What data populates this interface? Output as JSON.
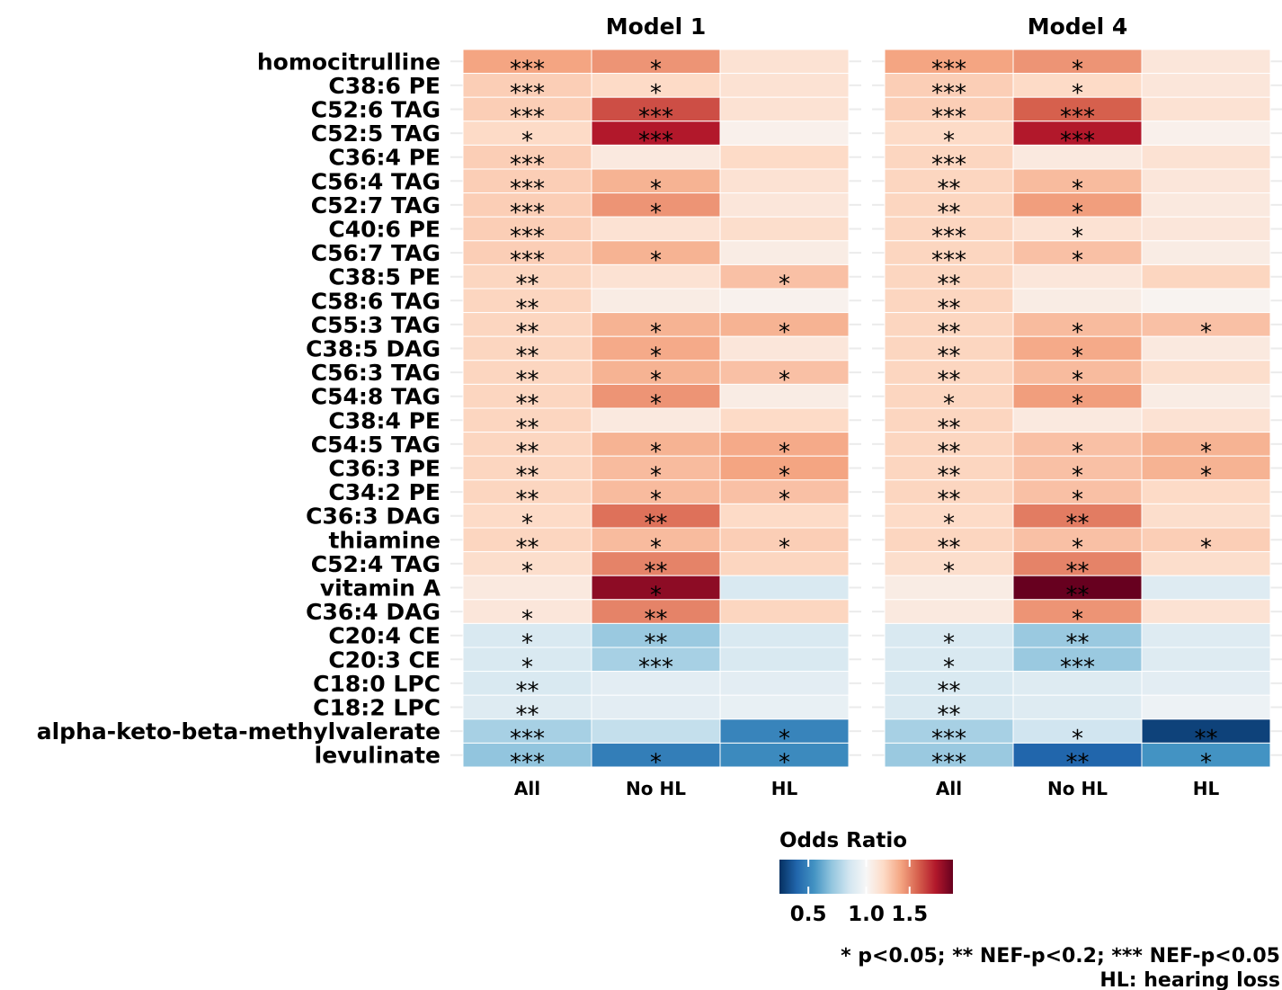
{
  "chart_data": {
    "type": "heatmap",
    "panels": [
      "Model 1",
      "Model 4"
    ],
    "columns": [
      "All",
      "No HL",
      "HL"
    ],
    "rows": [
      "homocitrulline",
      "C38:6 PE",
      "C52:6 TAG",
      "C52:5 TAG",
      "C36:4 PE",
      "C56:4 TAG",
      "C52:7 TAG",
      "C40:6 PE",
      "C56:7 TAG",
      "C38:5 PE",
      "C58:6 TAG",
      "C55:3 TAG",
      "C38:5 DAG",
      "C56:3 TAG",
      "C54:8 TAG",
      "C38:4 PE",
      "C54:5 TAG",
      "C36:3 PE",
      "C34:2 PE",
      "C36:3 DAG",
      "thiamine",
      "C52:4 TAG",
      "vitamin A",
      "C36:4 DAG",
      "C20:4 CE",
      "C20:3 CE",
      "C18:0 LPC",
      "C18:2 LPC",
      "alpha-keto-beta-methylvalerate",
      "levulinate"
    ],
    "values": {
      "Model 1": [
        [
          1.4,
          1.45,
          1.15
        ],
        [
          1.25,
          1.2,
          1.15
        ],
        [
          1.25,
          1.65,
          1.15
        ],
        [
          1.2,
          1.8,
          1.05
        ],
        [
          1.25,
          1.1,
          1.2
        ],
        [
          1.25,
          1.35,
          1.15
        ],
        [
          1.25,
          1.45,
          1.12
        ],
        [
          1.25,
          1.15,
          1.18
        ],
        [
          1.25,
          1.35,
          1.08
        ],
        [
          1.22,
          1.15,
          1.3
        ],
        [
          1.22,
          1.08,
          1.04
        ],
        [
          1.22,
          1.35,
          1.35
        ],
        [
          1.22,
          1.38,
          1.12
        ],
        [
          1.22,
          1.35,
          1.3
        ],
        [
          1.22,
          1.45,
          1.08
        ],
        [
          1.22,
          1.1,
          1.2
        ],
        [
          1.22,
          1.35,
          1.38
        ],
        [
          1.22,
          1.32,
          1.4
        ],
        [
          1.22,
          1.32,
          1.3
        ],
        [
          1.2,
          1.55,
          1.2
        ],
        [
          1.22,
          1.32,
          1.25
        ],
        [
          1.18,
          1.5,
          1.22
        ],
        [
          1.1,
          1.9,
          0.88
        ],
        [
          1.12,
          1.5,
          1.22
        ],
        [
          0.88,
          0.72,
          0.88
        ],
        [
          0.88,
          0.75,
          0.88
        ],
        [
          0.88,
          0.92,
          0.92
        ],
        [
          0.9,
          0.92,
          0.94
        ],
        [
          0.75,
          0.82,
          0.5
        ],
        [
          0.7,
          0.48,
          0.52
        ]
      ],
      "Model 4": [
        [
          1.4,
          1.45,
          1.12
        ],
        [
          1.25,
          1.2,
          1.12
        ],
        [
          1.25,
          1.6,
          1.15
        ],
        [
          1.2,
          1.8,
          1.05
        ],
        [
          1.22,
          1.1,
          1.15
        ],
        [
          1.22,
          1.32,
          1.12
        ],
        [
          1.22,
          1.42,
          1.1
        ],
        [
          1.22,
          1.15,
          1.12
        ],
        [
          1.22,
          1.3,
          1.08
        ],
        [
          1.22,
          1.12,
          1.22
        ],
        [
          1.22,
          1.08,
          1.03
        ],
        [
          1.22,
          1.32,
          1.3
        ],
        [
          1.22,
          1.38,
          1.1
        ],
        [
          1.22,
          1.32,
          1.18
        ],
        [
          1.22,
          1.42,
          1.08
        ],
        [
          1.22,
          1.1,
          1.15
        ],
        [
          1.22,
          1.3,
          1.35
        ],
        [
          1.22,
          1.3,
          1.35
        ],
        [
          1.22,
          1.3,
          1.2
        ],
        [
          1.2,
          1.52,
          1.18
        ],
        [
          1.22,
          1.3,
          1.25
        ],
        [
          1.18,
          1.5,
          1.18
        ],
        [
          1.08,
          2.0,
          0.9
        ],
        [
          1.1,
          1.45,
          1.15
        ],
        [
          0.88,
          0.72,
          0.9
        ],
        [
          0.88,
          0.72,
          0.9
        ],
        [
          0.88,
          0.9,
          0.92
        ],
        [
          0.88,
          0.9,
          0.96
        ],
        [
          0.75,
          0.85,
          0.3
        ],
        [
          0.72,
          0.4,
          0.55
        ]
      ]
    },
    "significance": {
      "Model 1": [
        [
          "***",
          "*",
          ""
        ],
        [
          "***",
          "*",
          ""
        ],
        [
          "***",
          "***",
          ""
        ],
        [
          "*",
          "***",
          ""
        ],
        [
          "***",
          "",
          ""
        ],
        [
          "***",
          "*",
          ""
        ],
        [
          "***",
          "*",
          ""
        ],
        [
          "***",
          "",
          ""
        ],
        [
          "***",
          "*",
          ""
        ],
        [
          "**",
          "",
          "*"
        ],
        [
          "**",
          "",
          ""
        ],
        [
          "**",
          "*",
          "*"
        ],
        [
          "**",
          "*",
          ""
        ],
        [
          "**",
          "*",
          "*"
        ],
        [
          "**",
          "*",
          ""
        ],
        [
          "**",
          "",
          ""
        ],
        [
          "**",
          "*",
          "*"
        ],
        [
          "**",
          "*",
          "*"
        ],
        [
          "**",
          "*",
          "*"
        ],
        [
          "*",
          "**",
          ""
        ],
        [
          "**",
          "*",
          "*"
        ],
        [
          "*",
          "**",
          ""
        ],
        [
          "",
          "*",
          ""
        ],
        [
          "*",
          "**",
          ""
        ],
        [
          "*",
          "**",
          ""
        ],
        [
          "*",
          "***",
          ""
        ],
        [
          "**",
          "",
          ""
        ],
        [
          "**",
          "",
          ""
        ],
        [
          "***",
          "",
          "*"
        ],
        [
          "***",
          "*",
          "*"
        ]
      ],
      "Model 4": [
        [
          "***",
          "*",
          ""
        ],
        [
          "***",
          "*",
          ""
        ],
        [
          "***",
          "***",
          ""
        ],
        [
          "*",
          "***",
          ""
        ],
        [
          "***",
          "",
          ""
        ],
        [
          "**",
          "*",
          ""
        ],
        [
          "**",
          "*",
          ""
        ],
        [
          "***",
          "*",
          ""
        ],
        [
          "***",
          "*",
          ""
        ],
        [
          "**",
          "",
          ""
        ],
        [
          "**",
          "",
          ""
        ],
        [
          "**",
          "*",
          "*"
        ],
        [
          "**",
          "*",
          ""
        ],
        [
          "**",
          "*",
          ""
        ],
        [
          "*",
          "*",
          ""
        ],
        [
          "**",
          "",
          ""
        ],
        [
          "**",
          "*",
          "*"
        ],
        [
          "**",
          "*",
          "*"
        ],
        [
          "**",
          "*",
          ""
        ],
        [
          "*",
          "**",
          ""
        ],
        [
          "**",
          "*",
          "*"
        ],
        [
          "*",
          "**",
          ""
        ],
        [
          "",
          "**",
          ""
        ],
        [
          "",
          "*",
          ""
        ],
        [
          "*",
          "**",
          ""
        ],
        [
          "*",
          "***",
          ""
        ],
        [
          "**",
          "",
          ""
        ],
        [
          "**",
          "",
          ""
        ],
        [
          "***",
          "*",
          "**"
        ],
        [
          "***",
          "**",
          "*"
        ]
      ]
    },
    "legend": {
      "title": "Odds Ratio",
      "ticks": [
        "0.5",
        "1.0",
        "1.5"
      ],
      "tick_values": [
        0.5,
        1.0,
        1.5
      ],
      "range": [
        0.25,
        2.0
      ],
      "colors": [
        "#053061",
        "#2166ac",
        "#4393c3",
        "#92c5de",
        "#d1e5f0",
        "#f7f7f7",
        "#fddbc7",
        "#f4a582",
        "#d6604d",
        "#b2182b",
        "#67001f"
      ]
    },
    "footnotes": [
      "* p<0.05; ** NEF-p<0.2; *** NEF-p<0.05",
      "HL: hearing loss"
    ]
  }
}
